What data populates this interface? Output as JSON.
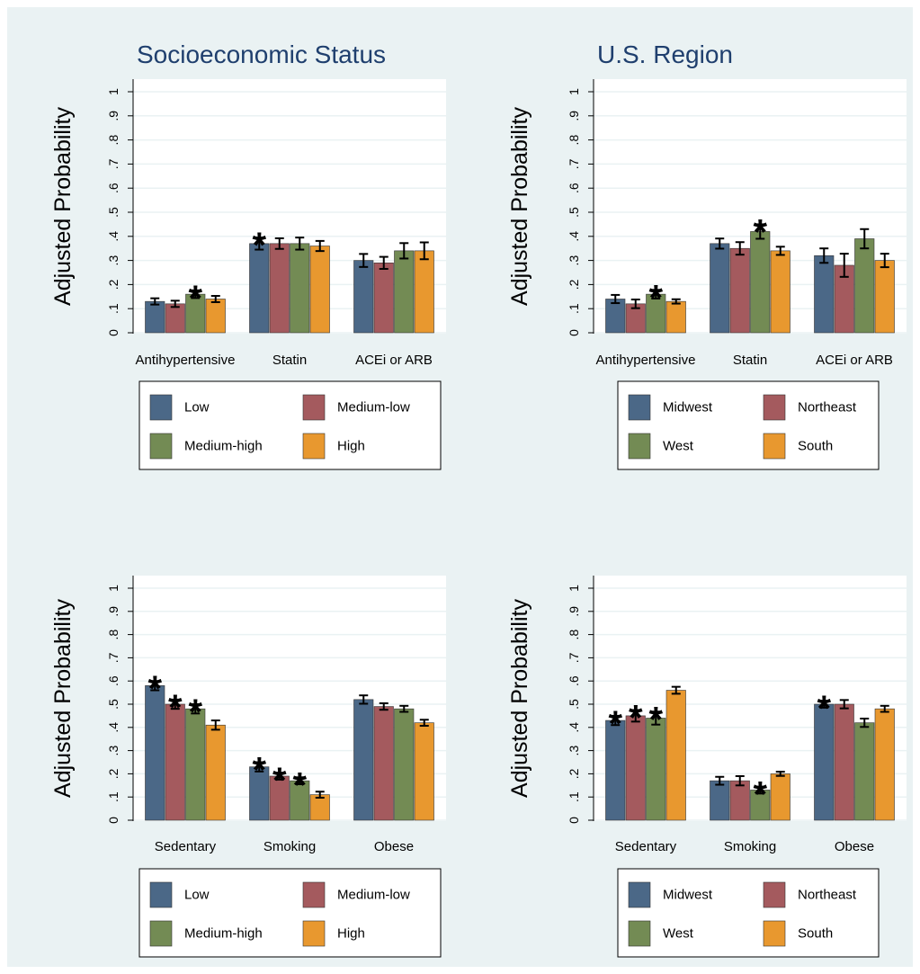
{
  "colors": {
    "background": "#eaf2f3",
    "plot_bg": "#ffffff",
    "grid": "#eaf2f3",
    "title": "#1f3f6e",
    "series": [
      "#4b6887",
      "#a45a5e",
      "#738b54",
      "#e8982f"
    ]
  },
  "chart_data": [
    {
      "type": "bar",
      "title": "Socioeconomic Status",
      "ylabel": "Adjusted Probability",
      "ylim": [
        0,
        1
      ],
      "yticks": [
        "0",
        ".1",
        ".2",
        ".3",
        ".4",
        ".5",
        ".6",
        ".7",
        ".8",
        ".9",
        "1"
      ],
      "grid": true,
      "categories": [
        "Antihypertensive",
        "Statin",
        "ACEi or ARB"
      ],
      "legend": [
        "Low",
        "Medium-low",
        "Medium-high",
        "High"
      ],
      "values": [
        [
          0.13,
          0.12,
          0.16,
          0.14
        ],
        [
          0.37,
          0.37,
          0.37,
          0.36
        ],
        [
          0.3,
          0.29,
          0.34,
          0.34
        ]
      ],
      "errors": [
        [
          0.013,
          0.013,
          0.016,
          0.013
        ],
        [
          0.025,
          0.022,
          0.025,
          0.021
        ],
        [
          0.027,
          0.025,
          0.032,
          0.035
        ]
      ],
      "stars": [
        [
          false,
          false,
          true,
          false
        ],
        [
          true,
          false,
          false,
          false
        ],
        [
          false,
          false,
          false,
          false
        ]
      ]
    },
    {
      "type": "bar",
      "title": "U.S. Region",
      "ylabel": "Adjusted Probability",
      "ylim": [
        0,
        1
      ],
      "yticks": [
        "0",
        ".1",
        ".2",
        ".3",
        ".4",
        ".5",
        ".6",
        ".7",
        ".8",
        ".9",
        "1"
      ],
      "grid": true,
      "categories": [
        "Antihypertensive",
        "Statin",
        "ACEi or ARB"
      ],
      "legend": [
        "Midwest",
        "Northeast",
        "West",
        "South"
      ],
      "values": [
        [
          0.14,
          0.12,
          0.16,
          0.13
        ],
        [
          0.37,
          0.35,
          0.42,
          0.34
        ],
        [
          0.32,
          0.28,
          0.39,
          0.3
        ]
      ],
      "errors": [
        [
          0.017,
          0.018,
          0.018,
          0.009
        ],
        [
          0.021,
          0.026,
          0.03,
          0.017
        ],
        [
          0.03,
          0.048,
          0.04,
          0.028
        ]
      ],
      "stars": [
        [
          false,
          false,
          true,
          false
        ],
        [
          false,
          false,
          true,
          false
        ],
        [
          false,
          false,
          false,
          false
        ]
      ]
    },
    {
      "type": "bar",
      "title": "",
      "ylabel": "Adjusted Probability",
      "ylim": [
        0,
        1
      ],
      "yticks": [
        "0",
        ".1",
        ".2",
        ".3",
        ".4",
        ".5",
        ".6",
        ".7",
        ".8",
        ".9",
        "1"
      ],
      "grid": true,
      "categories": [
        "Sedentary",
        "Smoking",
        "Obese"
      ],
      "legend": [
        "Low",
        "Medium-low",
        "Medium-high",
        "High"
      ],
      "values": [
        [
          0.58,
          0.5,
          0.48,
          0.41
        ],
        [
          0.23,
          0.19,
          0.17,
          0.11
        ],
        [
          0.52,
          0.49,
          0.48,
          0.42
        ]
      ],
      "errors": [
        [
          0.02,
          0.02,
          0.02,
          0.02
        ],
        [
          0.02,
          0.015,
          0.015,
          0.013
        ],
        [
          0.018,
          0.014,
          0.013,
          0.013
        ]
      ],
      "stars": [
        [
          true,
          true,
          true,
          false
        ],
        [
          true,
          true,
          true,
          false
        ],
        [
          false,
          false,
          false,
          false
        ]
      ]
    },
    {
      "type": "bar",
      "title": "",
      "ylabel": "Adjusted Probability",
      "ylim": [
        0,
        1
      ],
      "yticks": [
        "0",
        ".1",
        ".2",
        ".3",
        ".4",
        ".5",
        ".6",
        ".7",
        ".8",
        ".9",
        "1"
      ],
      "grid": true,
      "categories": [
        "Sedentary",
        "Smoking",
        "Obese"
      ],
      "legend": [
        "Midwest",
        "Northeast",
        "West",
        "South"
      ],
      "values": [
        [
          0.43,
          0.45,
          0.44,
          0.56
        ],
        [
          0.17,
          0.17,
          0.13,
          0.2
        ],
        [
          0.5,
          0.5,
          0.42,
          0.48
        ]
      ],
      "errors": [
        [
          0.02,
          0.025,
          0.028,
          0.015
        ],
        [
          0.017,
          0.02,
          0.015,
          0.009
        ],
        [
          0.015,
          0.018,
          0.018,
          0.013
        ]
      ],
      "stars": [
        [
          true,
          true,
          true,
          false
        ],
        [
          false,
          false,
          true,
          false
        ],
        [
          true,
          false,
          false,
          false
        ]
      ]
    }
  ]
}
